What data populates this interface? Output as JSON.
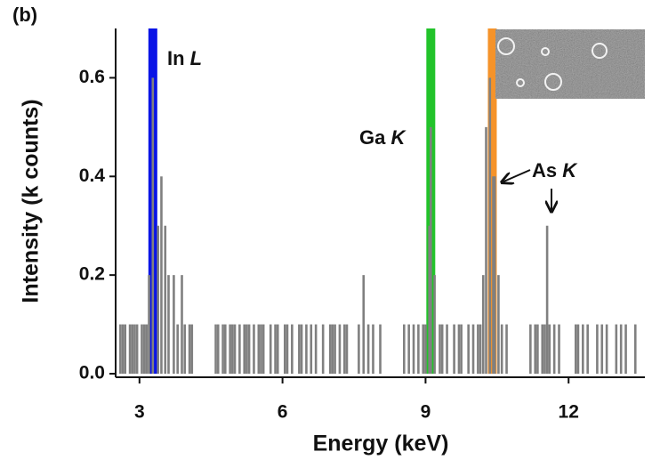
{
  "chart_data": {
    "type": "bar",
    "panel_label": "(b)",
    "xlabel": "Energy (keV)",
    "ylabel": "Intensity (k counts)",
    "color": "#808080",
    "xlim": [
      2.5,
      13.6
    ],
    "xticks": [
      3,
      6,
      9,
      12
    ],
    "ylim": [
      0,
      0.7
    ],
    "yticks": [
      {
        "value": 0,
        "label": "0.0"
      },
      0.2,
      0.4,
      0.6
    ],
    "bands": [
      {
        "label": "In L",
        "x": 3.28,
        "color": "#0a14e6"
      },
      {
        "label": "Ga K",
        "x": 9.11,
        "color": "#22c32a"
      },
      {
        "label": "As K",
        "x": 10.4,
        "color": "#f5932a"
      }
    ],
    "x": [
      2.6,
      2.65,
      2.7,
      2.8,
      2.85,
      2.9,
      2.95,
      3.05,
      3.1,
      3.15,
      3.2,
      3.28,
      3.39,
      3.46,
      3.54,
      3.61,
      3.72,
      3.8,
      3.89,
      3.95,
      4.05,
      4.1,
      4.6,
      4.65,
      4.75,
      4.8,
      4.9,
      4.95,
      5.0,
      5.1,
      5.2,
      5.25,
      5.3,
      5.4,
      5.5,
      5.55,
      5.6,
      5.75,
      5.85,
      5.9,
      6.05,
      6.1,
      6.2,
      6.35,
      6.4,
      6.5,
      6.6,
      6.7,
      6.85,
      7.0,
      7.05,
      7.1,
      7.2,
      7.3,
      7.35,
      7.6,
      7.7,
      7.8,
      7.9,
      8.05,
      8.55,
      8.65,
      8.75,
      8.85,
      8.95,
      9.0,
      9.08,
      9.11,
      9.19,
      9.3,
      9.35,
      9.45,
      9.6,
      9.7,
      9.75,
      9.9,
      10.0,
      10.1,
      10.15,
      10.21,
      10.27,
      10.35,
      10.42,
      10.45,
      10.53,
      10.6,
      10.7,
      11.2,
      11.3,
      11.35,
      11.45,
      11.5,
      11.55,
      11.6,
      11.7,
      11.8,
      12.15,
      12.2,
      12.3,
      12.4,
      12.6,
      12.7,
      12.8,
      13.0,
      13.1,
      13.2,
      13.4
    ],
    "values": [
      0.1,
      0.1,
      0.1,
      0.1,
      0.1,
      0.1,
      0.1,
      0.1,
      0.1,
      0.1,
      0.2,
      0.6,
      0.3,
      0.4,
      0.3,
      0.2,
      0.2,
      0.1,
      0.2,
      0.1,
      0.1,
      0.1,
      0.1,
      0.1,
      0.1,
      0.1,
      0.1,
      0.1,
      0.1,
      0.1,
      0.1,
      0.1,
      0.1,
      0.1,
      0.1,
      0.1,
      0.1,
      0.1,
      0.1,
      0.1,
      0.1,
      0.1,
      0.1,
      0.1,
      0.1,
      0.1,
      0.1,
      0.1,
      0.1,
      0.1,
      0.1,
      0.1,
      0.1,
      0.1,
      0.1,
      0.1,
      0.2,
      0.1,
      0.1,
      0.1,
      0.1,
      0.1,
      0.1,
      0.1,
      0.1,
      0.1,
      0.3,
      0.5,
      0.2,
      0.1,
      0.1,
      0.1,
      0.1,
      0.1,
      0.1,
      0.1,
      0.1,
      0.1,
      0.1,
      0.2,
      0.5,
      0.6,
      0.4,
      0.4,
      0.2,
      0.1,
      0.1,
      0.1,
      0.1,
      0.1,
      0.1,
      0.1,
      0.3,
      0.1,
      0.1,
      0.1,
      0.1,
      0.1,
      0.1,
      0.1,
      0.1,
      0.1,
      0.1,
      0.1,
      0.1,
      0.1,
      0.1
    ]
  }
}
